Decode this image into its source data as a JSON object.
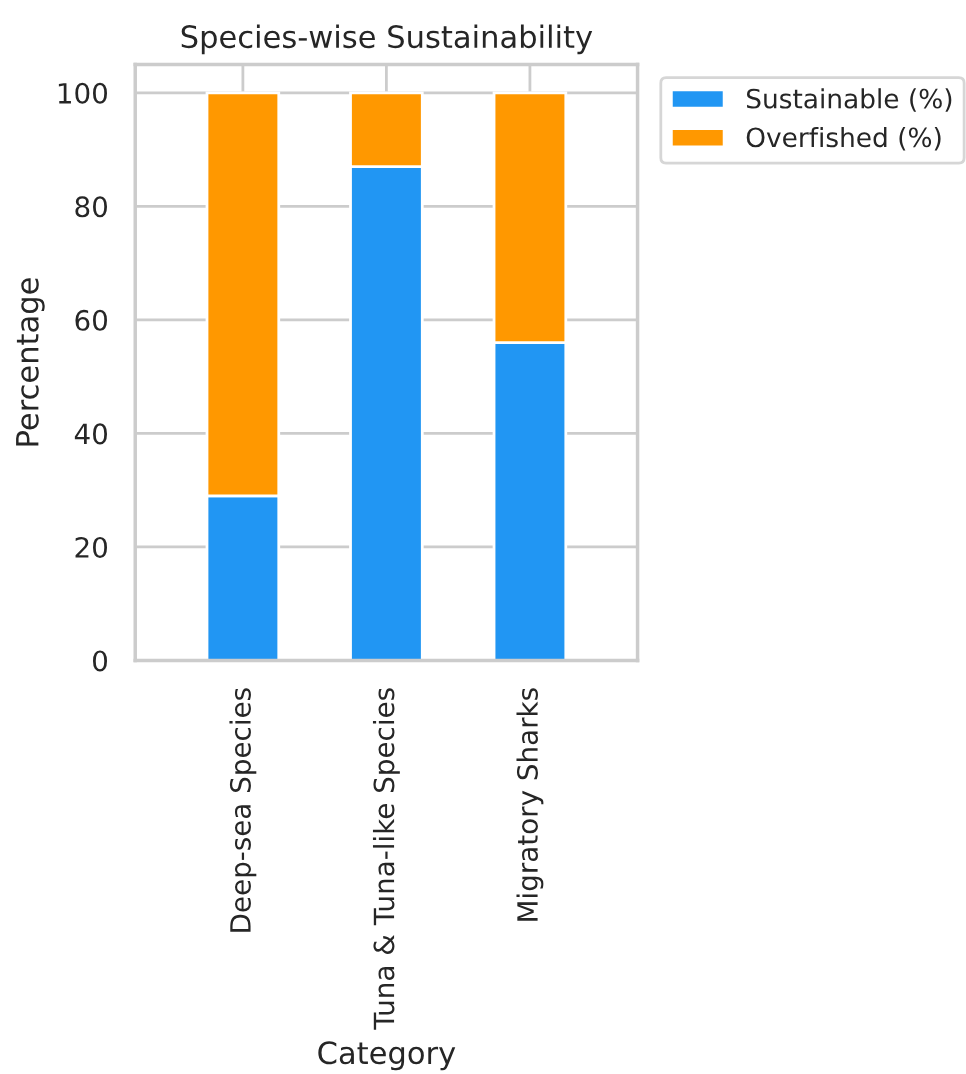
{
  "chart_data": {
    "type": "bar",
    "title": "Species-wise Sustainability",
    "xlabel": "Category",
    "ylabel": "Percentage",
    "categories": [
      "Deep-sea Species",
      "Tuna & Tuna-like Species",
      "Migratory Sharks"
    ],
    "stacked": true,
    "series": [
      {
        "name": "Sustainable (%)",
        "color": "#2196f3",
        "values": [
          29,
          87,
          56
        ]
      },
      {
        "name": "Overfished (%)",
        "color": "#ff9800",
        "values": [
          71,
          13,
          44
        ]
      }
    ],
    "ylim": [
      0,
      105
    ],
    "yticks": [
      0,
      20,
      40,
      60,
      80,
      100
    ],
    "grid": true,
    "legend": "top right"
  }
}
